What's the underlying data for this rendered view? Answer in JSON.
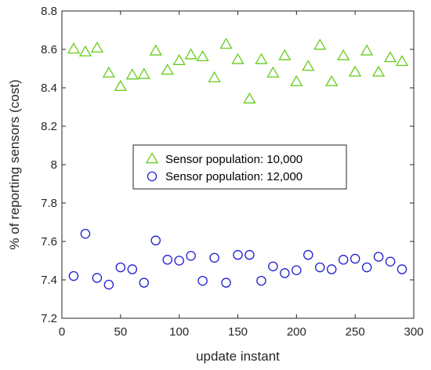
{
  "chart_data": {
    "type": "scatter",
    "title": "",
    "xlabel": "update instant",
    "ylabel": "% of reporting sensors (cost)",
    "xlim": [
      0,
      300
    ],
    "ylim": [
      7.2,
      8.8
    ],
    "xticks": [
      0,
      50,
      100,
      150,
      200,
      250,
      300
    ],
    "yticks": [
      7.2,
      7.4,
      7.6,
      7.8,
      8,
      8.2,
      8.4,
      8.6,
      8.8
    ],
    "xtick_labels": [
      "0",
      "50",
      "100",
      "150",
      "200",
      "250",
      "300"
    ],
    "ytick_labels": [
      "7.2",
      "7.4",
      "7.6",
      "7.8",
      "8",
      "8.2",
      "8.4",
      "8.6",
      "8.8"
    ],
    "grid": false,
    "legend_position": "center",
    "series": [
      {
        "name": "Sensor population: 10,000",
        "marker": "triangle",
        "color": "#66cc1a",
        "x": [
          10,
          20,
          30,
          40,
          50,
          60,
          70,
          80,
          90,
          100,
          110,
          120,
          130,
          140,
          150,
          160,
          170,
          180,
          190,
          200,
          210,
          220,
          230,
          240,
          250,
          260,
          270,
          280,
          290
        ],
        "y": [
          8.6,
          8.585,
          8.605,
          8.475,
          8.405,
          8.465,
          8.468,
          8.59,
          8.49,
          8.54,
          8.57,
          8.56,
          8.45,
          8.625,
          8.545,
          8.34,
          8.545,
          8.475,
          8.565,
          8.43,
          8.51,
          8.62,
          8.43,
          8.565,
          8.48,
          8.59,
          8.48,
          8.555,
          8.535
        ]
      },
      {
        "name": "Sensor population: 12,000",
        "marker": "circle",
        "color": "#1f1fcc",
        "x": [
          10,
          20,
          30,
          40,
          50,
          60,
          70,
          80,
          90,
          100,
          110,
          120,
          130,
          140,
          150,
          160,
          170,
          180,
          190,
          200,
          210,
          220,
          230,
          240,
          250,
          260,
          270,
          280,
          290
        ],
        "y": [
          7.42,
          7.64,
          7.41,
          7.375,
          7.465,
          7.455,
          7.385,
          7.605,
          7.505,
          7.5,
          7.525,
          7.395,
          7.515,
          7.385,
          7.53,
          7.53,
          7.395,
          7.47,
          7.435,
          7.45,
          7.53,
          7.465,
          7.455,
          7.505,
          7.51,
          7.465,
          7.52,
          7.495,
          7.455
        ]
      }
    ]
  }
}
